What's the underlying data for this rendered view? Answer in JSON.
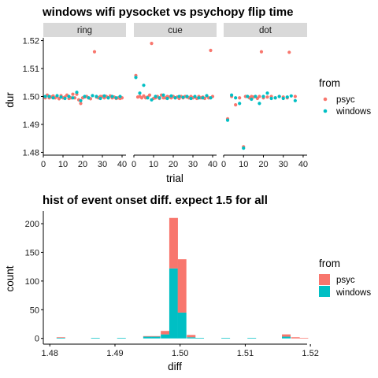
{
  "colors": {
    "psyc": "#F8766D",
    "windows": "#00BFC4",
    "strip": "#D9D9D9",
    "axis": "#000000"
  },
  "chart_data": [
    {
      "type": "scatter",
      "title": "windows wifi pysocket vs psychopy flip time",
      "xlabel": "trial",
      "ylabel": "dur",
      "facets": [
        "ring",
        "cue",
        "dot"
      ],
      "xlim": [
        0,
        42
      ],
      "ylim": [
        1.479,
        1.521
      ],
      "x_ticks": [
        0,
        10,
        20,
        30,
        40
      ],
      "x_tick_labels": [
        "0",
        "10",
        "20",
        "30",
        "40"
      ],
      "y_ticks": [
        1.48,
        1.49,
        1.5,
        1.51,
        1.52
      ],
      "y_tick_labels": [
        "1.48",
        "1.49",
        "1.50",
        "1.51",
        "1.52"
      ],
      "legend": {
        "title": "from",
        "entries": [
          "psyc",
          "windows"
        ],
        "placement": "right"
      },
      "series": [
        {
          "name": "psyc",
          "points": {
            "ring": [
              [
                1,
                1.4995
              ],
              [
                2,
                1.5005
              ],
              [
                3,
                1.4995
              ],
              [
                4,
                1.4998
              ],
              [
                5,
                1.5002
              ],
              [
                6,
                1.4995
              ],
              [
                7,
                1.5
              ],
              [
                8,
                1.4992
              ],
              [
                9,
                1.5003
              ],
              [
                10,
                1.4995
              ],
              [
                11,
                1.4998
              ],
              [
                12,
                1.5005
              ],
              [
                13,
                1.4993
              ],
              [
                14,
                1.4995
              ],
              [
                15,
                1.5008
              ],
              [
                16,
                1.4995
              ],
              [
                17,
                1.5008
              ],
              [
                18,
                1.4988
              ],
              [
                19,
                1.4975
              ],
              [
                20,
                1.4995
              ],
              [
                21,
                1.4998
              ],
              [
                22,
                1.5
              ],
              [
                23,
                1.4995
              ],
              [
                24,
                1.4992
              ],
              [
                25,
                1.5003
              ],
              [
                26,
                1.516
              ],
              [
                27,
                1.4998
              ],
              [
                28,
                1.4995
              ],
              [
                29,
                1.5
              ],
              [
                30,
                1.5
              ],
              [
                31,
                1.4995
              ],
              [
                32,
                1.5
              ],
              [
                33,
                1.4995
              ],
              [
                34,
                1.5002
              ],
              [
                35,
                1.4995
              ],
              [
                36,
                1.4998
              ],
              [
                37,
                1.4993
              ],
              [
                38,
                1.4995
              ],
              [
                39,
                1.4993
              ],
              [
                40,
                1.4995
              ]
            ],
            "cue": [
              [
                1,
                1.5075
              ],
              [
                2,
                1.4998
              ],
              [
                3,
                1.5
              ],
              [
                4,
                1.4995
              ],
              [
                5,
                1.5002
              ],
              [
                6,
                1.4995
              ],
              [
                7,
                1.4998
              ],
              [
                8,
                1.5005
              ],
              [
                9,
                1.519
              ],
              [
                10,
                1.4993
              ],
              [
                11,
                1.4995
              ],
              [
                12,
                1.5
              ],
              [
                13,
                1.4993
              ],
              [
                14,
                1.5005
              ],
              [
                15,
                1.4995
              ],
              [
                16,
                1.4995
              ],
              [
                17,
                1.5
              ],
              [
                18,
                1.4998
              ],
              [
                19,
                1.4995
              ],
              [
                20,
                1.5
              ],
              [
                21,
                1.4995
              ],
              [
                22,
                1.4998
              ],
              [
                23,
                1.4993
              ],
              [
                24,
                1.5
              ],
              [
                25,
                1.4995
              ],
              [
                26,
                1.5
              ],
              [
                27,
                1.4998
              ],
              [
                28,
                1.4995
              ],
              [
                29,
                1.5
              ],
              [
                30,
                1.4995
              ],
              [
                31,
                1.4998
              ],
              [
                32,
                1.4993
              ],
              [
                33,
                1.5
              ],
              [
                34,
                1.4995
              ],
              [
                35,
                1.4998
              ],
              [
                36,
                1.4993
              ],
              [
                37,
                1.5002
              ],
              [
                38,
                1.4995
              ],
              [
                39,
                1.5165
              ],
              [
                40,
                1.5
              ]
            ],
            "dot": [
              [
                2,
                1.492
              ],
              [
                4,
                1.5
              ],
              [
                6,
                1.497
              ],
              [
                8,
                1.4995
              ],
              [
                10,
                1.482
              ],
              [
                11,
                1.5
              ],
              [
                12,
                1.5
              ],
              [
                13,
                1.4995
              ],
              [
                14,
                1.5
              ],
              [
                15,
                1.4998
              ],
              [
                16,
                1.5
              ],
              [
                17,
                1.4993
              ],
              [
                18,
                1.5
              ],
              [
                19,
                1.516
              ],
              [
                20,
                1.4995
              ],
              [
                22,
                1.4998
              ],
              [
                24,
                1.5
              ],
              [
                26,
                1.4995
              ],
              [
                28,
                1.5
              ],
              [
                30,
                1.4998
              ],
              [
                32,
                1.4995
              ],
              [
                33,
                1.5158
              ],
              [
                36,
                1.5
              ]
            ]
          }
        },
        {
          "name": "windows",
          "points": {
            "ring": [
              [
                1,
                1.5
              ],
              [
                3,
                1.5
              ],
              [
                5,
                1.4995
              ],
              [
                7,
                1.5003
              ],
              [
                9,
                1.4998
              ],
              [
                11,
                1.4993
              ],
              [
                13,
                1.5
              ],
              [
                15,
                1.4995
              ],
              [
                17,
                1.5015
              ],
              [
                19,
                1.4985
              ],
              [
                21,
                1.5
              ],
              [
                23,
                1.4995
              ],
              [
                25,
                1.5003
              ],
              [
                27,
                1.5
              ],
              [
                29,
                1.4993
              ],
              [
                31,
                1.5002
              ],
              [
                33,
                1.4995
              ],
              [
                35,
                1.5
              ],
              [
                37,
                1.4995
              ],
              [
                39,
                1.5
              ]
            ],
            "cue": [
              [
                1,
                1.5068
              ],
              [
                3,
                1.5012
              ],
              [
                5,
                1.504
              ],
              [
                7,
                1.4995
              ],
              [
                9,
                1.4988
              ],
              [
                11,
                1.5
              ],
              [
                13,
                1.4995
              ],
              [
                15,
                1.5005
              ],
              [
                17,
                1.4993
              ],
              [
                19,
                1.5002
              ],
              [
                21,
                1.4995
              ],
              [
                23,
                1.5
              ],
              [
                25,
                1.4997
              ],
              [
                27,
                1.5
              ],
              [
                29,
                1.4993
              ],
              [
                31,
                1.5
              ],
              [
                33,
                1.4995
              ],
              [
                35,
                1.4995
              ],
              [
                37,
                1.5003
              ],
              [
                39,
                1.4995
              ]
            ],
            "dot": [
              [
                2,
                1.4915
              ],
              [
                4,
                1.5005
              ],
              [
                6,
                1.4995
              ],
              [
                8,
                1.4975
              ],
              [
                10,
                1.4815
              ],
              [
                12,
                1.5
              ],
              [
                14,
                1.499
              ],
              [
                16,
                1.5
              ],
              [
                18,
                1.4975
              ],
              [
                20,
                1.5
              ],
              [
                22,
                1.5012
              ],
              [
                24,
                1.4993
              ],
              [
                26,
                1.4995
              ],
              [
                28,
                1.5
              ],
              [
                30,
                1.4993
              ],
              [
                32,
                1.4998
              ],
              [
                34,
                1.5002
              ],
              [
                36,
                1.4985
              ]
            ]
          }
        }
      ]
    },
    {
      "type": "histogram",
      "title": "hist of event onset diff. expect 1.5 for all",
      "xlabel": "diff",
      "ylabel": "count",
      "xlim": [
        1.479,
        1.5195
      ],
      "ylim": [
        -10,
        222
      ],
      "x_ticks": [
        1.48,
        1.49,
        1.5,
        1.51,
        1.52
      ],
      "x_tick_labels": [
        "1.48",
        "1.49",
        "1.50",
        "1.51",
        "1.52"
      ],
      "y_ticks": [
        0,
        50,
        100,
        150,
        200
      ],
      "y_tick_labels": [
        "0",
        "50",
        "100",
        "150",
        "200"
      ],
      "bin_width": 0.00133,
      "stacked": true,
      "legend": {
        "title": "from",
        "entries": [
          "psyc",
          "windows"
        ],
        "placement": "right"
      },
      "bins": [
        {
          "x": 1.4817,
          "psyc": 1,
          "windows": 1
        },
        {
          "x": 1.487,
          "psyc": 0,
          "windows": 1
        },
        {
          "x": 1.491,
          "psyc": 0,
          "windows": 1
        },
        {
          "x": 1.495,
          "psyc": 1,
          "windows": 3
        },
        {
          "x": 1.4963,
          "psyc": 1,
          "windows": 3
        },
        {
          "x": 1.4977,
          "psyc": 6,
          "windows": 7
        },
        {
          "x": 1.499,
          "psyc": 88,
          "windows": 122
        },
        {
          "x": 1.5003,
          "psyc": 93,
          "windows": 45
        },
        {
          "x": 1.5017,
          "psyc": 4,
          "windows": 2
        },
        {
          "x": 1.503,
          "psyc": 0,
          "windows": 1
        },
        {
          "x": 1.507,
          "psyc": 0,
          "windows": 1
        },
        {
          "x": 1.511,
          "psyc": 0,
          "windows": 1
        },
        {
          "x": 1.5163,
          "psyc": 4,
          "windows": 3
        },
        {
          "x": 1.5177,
          "psyc": 2,
          "windows": 0
        },
        {
          "x": 1.519,
          "psyc": 1,
          "windows": 0
        }
      ]
    }
  ]
}
